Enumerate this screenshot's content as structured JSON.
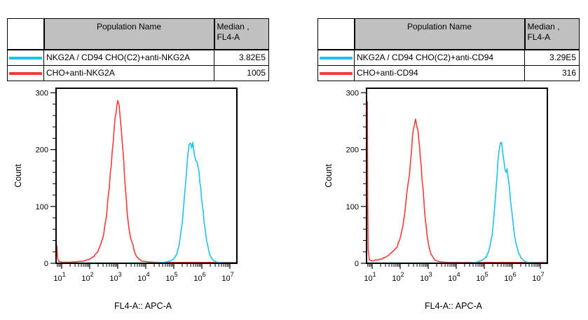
{
  "colors": {
    "cyan_series": "#1cc1f2",
    "red_series": "#f6393a",
    "table_header_bg": "#c0c0c0",
    "axis": "#000000"
  },
  "tables": [
    {
      "columns": {
        "population": "Population Name",
        "median_line1": "Median ,",
        "median_line2": "FL4-A"
      },
      "rows": [
        {
          "name": "NKG2A / CD94 CHO(C2)+anti-NKG2A",
          "median": "3.82E5",
          "color": "#1cc1f2"
        },
        {
          "name": "CHO+anti-NKG2A",
          "median": "1005",
          "color": "#f6393a"
        }
      ]
    },
    {
      "columns": {
        "population": "Population Name",
        "median_line1": "Median ,",
        "median_line2": "FL4-A"
      },
      "rows": [
        {
          "name": "NKG2A / CD94 CHO(C2)+anti-CD94",
          "median": "3.29E5",
          "color": "#1cc1f2"
        },
        {
          "name": "CHO+anti-CD94",
          "median": "316",
          "color": "#f6393a"
        }
      ]
    }
  ],
  "chart_data": [
    {
      "type": "line",
      "title": "",
      "xlabel": "FL4-A:: APC-A",
      "ylabel": "Count",
      "x_scale": "log10",
      "x_range_log10": [
        0.8,
        7.25
      ],
      "x_major_ticks_log10": [
        1,
        2,
        3,
        4,
        5,
        6,
        7
      ],
      "x_tick_labels": [
        "10^1",
        "10^2",
        "10^3",
        "10^4",
        "10^5",
        "10^6",
        "10^7"
      ],
      "ylim": [
        0,
        308
      ],
      "y_major_ticks": [
        0,
        100,
        200,
        300
      ],
      "y_minor_step": 20,
      "grid": "off",
      "legend": "none (see table above)",
      "series": [
        {
          "name": "CHO+anti-NKG2A",
          "color": "#f6393a",
          "median": "1005",
          "points_log10x_count": [
            [
              0.8,
              0
            ],
            [
              0.81,
              26
            ],
            [
              0.83,
              30
            ],
            [
              0.85,
              12
            ],
            [
              0.88,
              4
            ],
            [
              1.0,
              2
            ],
            [
              1.3,
              2
            ],
            [
              1.6,
              3
            ],
            [
              1.8,
              4
            ],
            [
              2.0,
              7
            ],
            [
              2.15,
              12
            ],
            [
              2.3,
              22
            ],
            [
              2.4,
              34
            ],
            [
              2.5,
              52
            ],
            [
              2.6,
              85
            ],
            [
              2.7,
              135
            ],
            [
              2.8,
              195
            ],
            [
              2.88,
              240
            ],
            [
              2.94,
              268
            ],
            [
              3.0,
              285
            ],
            [
              3.05,
              275
            ],
            [
              3.1,
              252
            ],
            [
              3.16,
              215
            ],
            [
              3.22,
              172
            ],
            [
              3.28,
              128
            ],
            [
              3.34,
              90
            ],
            [
              3.4,
              62
            ],
            [
              3.46,
              46
            ],
            [
              3.52,
              36
            ],
            [
              3.58,
              24
            ],
            [
              3.65,
              14
            ],
            [
              3.75,
              8
            ],
            [
              3.85,
              4
            ],
            [
              4.0,
              3
            ],
            [
              4.2,
              2
            ],
            [
              4.5,
              1.5
            ],
            [
              7.25,
              1.5
            ]
          ]
        },
        {
          "name": "NKG2A / CD94 CHO(C2)+anti-NKG2A",
          "color": "#1cc1f2",
          "median": "3.82E5",
          "points_log10x_count": [
            [
              0.8,
              0.5
            ],
            [
              4.3,
              0.5
            ],
            [
              4.5,
              1
            ],
            [
              4.7,
              2
            ],
            [
              4.85,
              4
            ],
            [
              5.0,
              8
            ],
            [
              5.1,
              16
            ],
            [
              5.2,
              34
            ],
            [
              5.3,
              70
            ],
            [
              5.38,
              115
            ],
            [
              5.45,
              160
            ],
            [
              5.5,
              192
            ],
            [
              5.55,
              208
            ],
            [
              5.6,
              212
            ],
            [
              5.64,
              203
            ],
            [
              5.68,
              209
            ],
            [
              5.73,
              196
            ],
            [
              5.78,
              182
            ],
            [
              5.84,
              174
            ],
            [
              5.9,
              158
            ],
            [
              5.96,
              132
            ],
            [
              6.02,
              102
            ],
            [
              6.08,
              74
            ],
            [
              6.14,
              50
            ],
            [
              6.2,
              32
            ],
            [
              6.28,
              16
            ],
            [
              6.36,
              8
            ],
            [
              6.45,
              4
            ],
            [
              6.55,
              2
            ],
            [
              6.7,
              1
            ],
            [
              7.25,
              0.5
            ]
          ]
        }
      ]
    },
    {
      "type": "line",
      "title": "",
      "xlabel": "FL4-A:: APC-A",
      "ylabel": "Count",
      "x_scale": "log10",
      "x_range_log10": [
        0.8,
        7.25
      ],
      "x_major_ticks_log10": [
        1,
        2,
        3,
        4,
        5,
        6,
        7
      ],
      "x_tick_labels": [
        "10^1",
        "10^2",
        "10^3",
        "10^4",
        "10^5",
        "10^6",
        "10^7"
      ],
      "ylim": [
        0,
        308
      ],
      "y_major_ticks": [
        0,
        100,
        200,
        300
      ],
      "y_minor_step": 20,
      "grid": "off",
      "legend": "none (see table above)",
      "series": [
        {
          "name": "CHO+anti-CD94",
          "color": "#f6393a",
          "median": "316",
          "points_log10x_count": [
            [
              0.8,
              2
            ],
            [
              0.81,
              283
            ],
            [
              0.83,
              285
            ],
            [
              0.84,
              120
            ],
            [
              0.86,
              25
            ],
            [
              0.9,
              6
            ],
            [
              1.0,
              4
            ],
            [
              1.2,
              6
            ],
            [
              1.4,
              9
            ],
            [
              1.55,
              13
            ],
            [
              1.7,
              19
            ],
            [
              1.8,
              23
            ],
            [
              1.9,
              30
            ],
            [
              2.0,
              45
            ],
            [
              2.1,
              68
            ],
            [
              2.2,
              105
            ],
            [
              2.28,
              140
            ],
            [
              2.33,
              152
            ],
            [
              2.38,
              185
            ],
            [
              2.44,
              222
            ],
            [
              2.5,
              245
            ],
            [
              2.55,
              255
            ],
            [
              2.6,
              243
            ],
            [
              2.66,
              222
            ],
            [
              2.72,
              188
            ],
            [
              2.78,
              150
            ],
            [
              2.84,
              112
            ],
            [
              2.9,
              76
            ],
            [
              2.96,
              48
            ],
            [
              3.02,
              30
            ],
            [
              3.1,
              16
            ],
            [
              3.2,
              8
            ],
            [
              3.3,
              4
            ],
            [
              3.5,
              2
            ],
            [
              3.8,
              1.5
            ],
            [
              7.25,
              1.5
            ]
          ]
        },
        {
          "name": "NKG2A / CD94 CHO(C2)+anti-CD94",
          "color": "#1cc1f2",
          "median": "3.29E5",
          "points_log10x_count": [
            [
              0.8,
              0.5
            ],
            [
              4.4,
              0.5
            ],
            [
              4.6,
              1
            ],
            [
              4.8,
              3
            ],
            [
              4.95,
              6
            ],
            [
              5.08,
              12
            ],
            [
              5.18,
              24
            ],
            [
              5.28,
              50
            ],
            [
              5.36,
              92
            ],
            [
              5.43,
              140
            ],
            [
              5.49,
              180
            ],
            [
              5.54,
              205
            ],
            [
              5.58,
              213
            ],
            [
              5.62,
              210
            ],
            [
              5.66,
              196
            ],
            [
              5.7,
              185
            ],
            [
              5.74,
              168
            ],
            [
              5.78,
              162
            ],
            [
              5.81,
              167
            ],
            [
              5.85,
              152
            ],
            [
              5.9,
              130
            ],
            [
              5.96,
              100
            ],
            [
              6.02,
              72
            ],
            [
              6.08,
              50
            ],
            [
              6.15,
              32
            ],
            [
              6.22,
              19
            ],
            [
              6.3,
              10
            ],
            [
              6.4,
              5
            ],
            [
              6.5,
              2.5
            ],
            [
              6.65,
              1
            ],
            [
              7.25,
              0.5
            ]
          ]
        }
      ]
    }
  ]
}
